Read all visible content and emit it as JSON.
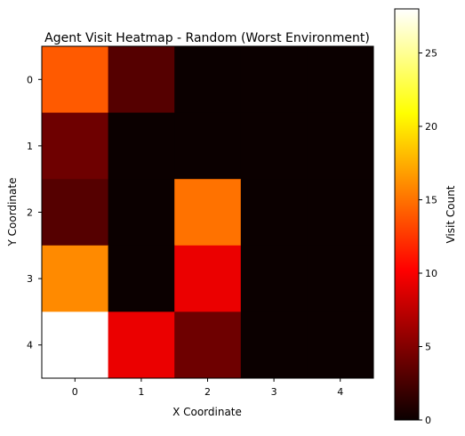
{
  "chart_data": {
    "type": "heatmap",
    "title": "Agent Visit Heatmap - Random (Worst Environment)",
    "xlabel": "X Coordinate",
    "ylabel": "Y Coordinate",
    "x_ticks": [
      "0",
      "1",
      "2",
      "3",
      "4"
    ],
    "y_ticks": [
      "0",
      "1",
      "2",
      "3",
      "4"
    ],
    "colormap": "hot",
    "colorbar": {
      "label": "Visit Count",
      "min": 0,
      "max": 28,
      "ticks": [
        "0",
        "5",
        "10",
        "15",
        "20",
        "25"
      ]
    },
    "grid": false,
    "values": [
      [
        14,
        3,
        0,
        0,
        0
      ],
      [
        4,
        0,
        0,
        0,
        0
      ],
      [
        3,
        0,
        15,
        0,
        0
      ],
      [
        16,
        0,
        9,
        0,
        0
      ],
      [
        28,
        9,
        4,
        0,
        0
      ]
    ]
  }
}
